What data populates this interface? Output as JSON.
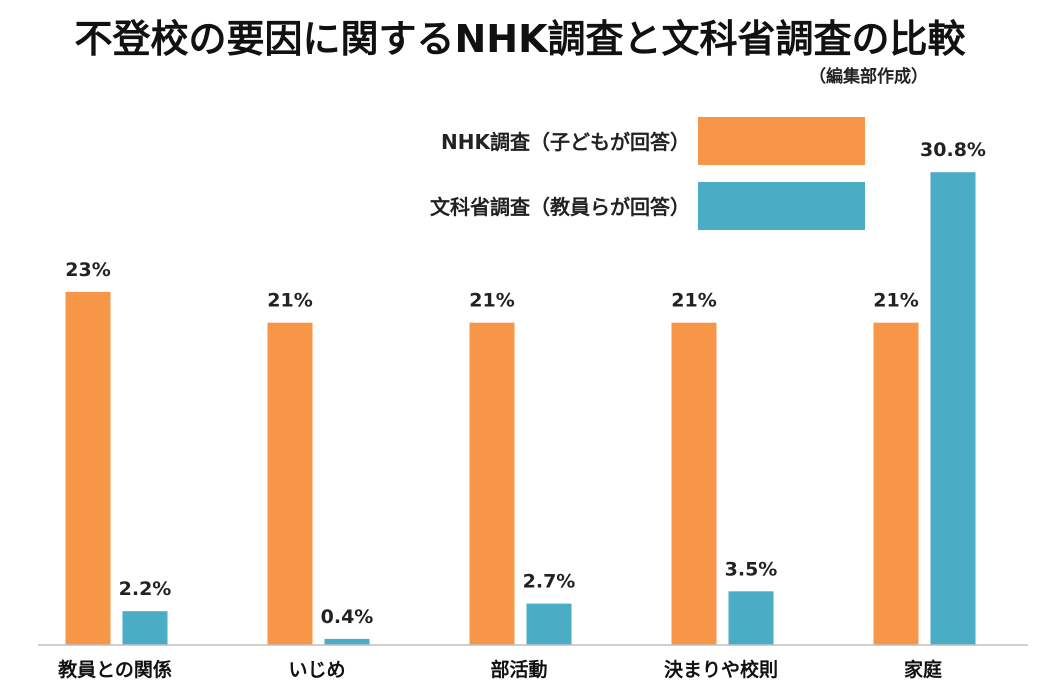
{
  "chart_data": {
    "type": "bar",
    "title": "不登校の要因に関するNHK調査と文科省調査の比較",
    "subtitle": "（編集部作成）",
    "categories": [
      "教員との関係",
      "いじめ",
      "部活動",
      "決まりや校則",
      "家庭"
    ],
    "series": [
      {
        "name": "NHK調査（子どもが回答）",
        "color": "#F79646",
        "values": [
          23,
          21,
          21,
          21,
          21
        ],
        "labels": [
          "23%",
          "21%",
          "21%",
          "21%",
          "21%"
        ]
      },
      {
        "name": "文科省調査（教員らが回答）",
        "color": "#4BACC6",
        "values": [
          2.2,
          0.4,
          2.7,
          3.5,
          30.8
        ],
        "labels": [
          "2.2%",
          "0.4%",
          "2.7%",
          "3.5%",
          "30.8%"
        ]
      }
    ],
    "unit": "%",
    "ylim": [
      0,
      35
    ],
    "grid": false,
    "legend": "top-right"
  }
}
